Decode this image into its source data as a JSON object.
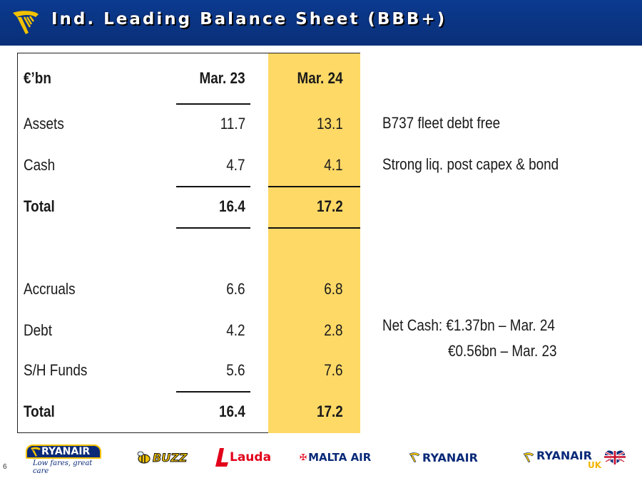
{
  "header": {
    "title": "Ind. Leading Balance Sheet (BBB+)"
  },
  "table": {
    "unit_label": "€’bn",
    "col1_header": "Mar. 23",
    "col2_header": "Mar. 24",
    "rows": [
      {
        "label": "Assets",
        "v1": "11.7",
        "v2": "13.1"
      },
      {
        "label": "Cash",
        "v1": "4.7",
        "v2": "4.1"
      },
      {
        "label": "Total",
        "v1": "16.4",
        "v2": "17.2"
      },
      {
        "label": "Accruals",
        "v1": "6.6",
        "v2": "6.8"
      },
      {
        "label": "Debt",
        "v1": "4.2",
        "v2": "2.8"
      },
      {
        "label": "S/H Funds",
        "v1": "5.6",
        "v2": "7.6"
      },
      {
        "label": "Total",
        "v1": "16.4",
        "v2": "17.2"
      }
    ]
  },
  "notes": {
    "fleet": "B737 fleet debt free",
    "liquidity": "Strong liq. post capex & bond",
    "net_cash_line1": "Net Cash: €1.37bn – Mar. 24",
    "net_cash_line2": "€0.56bn – Mar. 23"
  },
  "footer": {
    "page_number": "6",
    "brands": {
      "ryanair_main": "RYANAIR",
      "ryanair_tagline": "Low fares, great care",
      "buzz": "BUZZ",
      "lauda": "Lauda",
      "malta": "MALTA AIR",
      "ryanair_dac": "RYANAIR",
      "ryanair_uk": "RYANAIR",
      "uk_suffix": "UK"
    }
  },
  "colors": {
    "header_bg": "#0b3a8f",
    "highlight": "#ffd966",
    "harp": "#f2c200",
    "brand_navy": "#0a2a78",
    "lauda_red": "#e2001a",
    "uk_gold": "#f2b400"
  }
}
